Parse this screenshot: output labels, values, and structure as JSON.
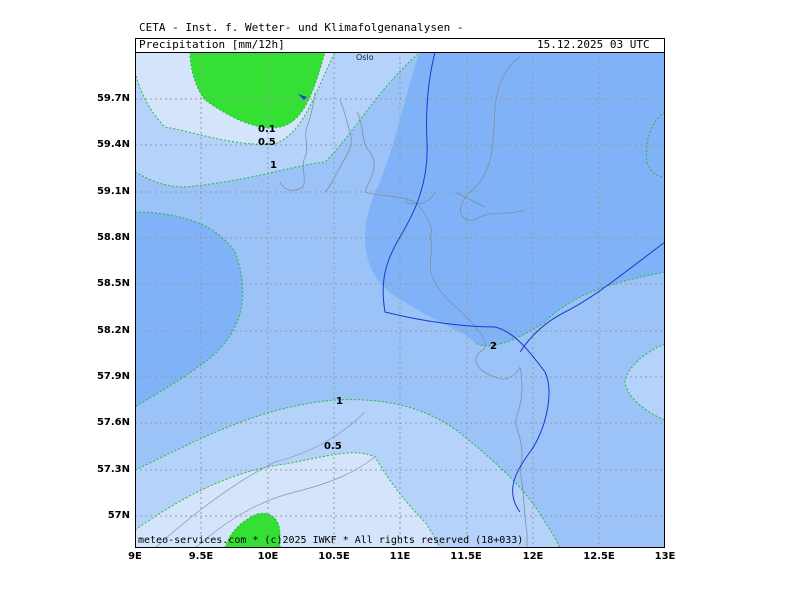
{
  "header": {
    "line1": "CETA - Inst. f. Wetter- und Klimafolgenanalysen -",
    "title": "Precipitation [mm/12h]",
    "timestamp": "15.12.2025 03 UTC"
  },
  "footer": "meteo-services.com * (c)2025 IWKF * All rights reserved (18+033)",
  "city": "Oslo",
  "lat_ticks": [
    "59.7N",
    "59.4N",
    "59.1N",
    "58.8N",
    "58.5N",
    "58.2N",
    "57.9N",
    "57.6N",
    "57.3N",
    "57N"
  ],
  "lon_ticks": [
    "9E",
    "9.5E",
    "10E",
    "10.5E",
    "11E",
    "11.5E",
    "12E",
    "12.5E",
    "13E"
  ],
  "contour_labels": [
    "0.1",
    "0.5",
    "1",
    "1",
    "0.5",
    "2"
  ],
  "colors": {
    "very_light": "#d4e4fb",
    "light": "#b5d2fb",
    "medium": "#9cc3f8",
    "dark": "#7fb2f6",
    "green": "#33e033",
    "contour": "#22bb33",
    "coast": "#7f8fa3",
    "border": "#1a3acc"
  }
}
